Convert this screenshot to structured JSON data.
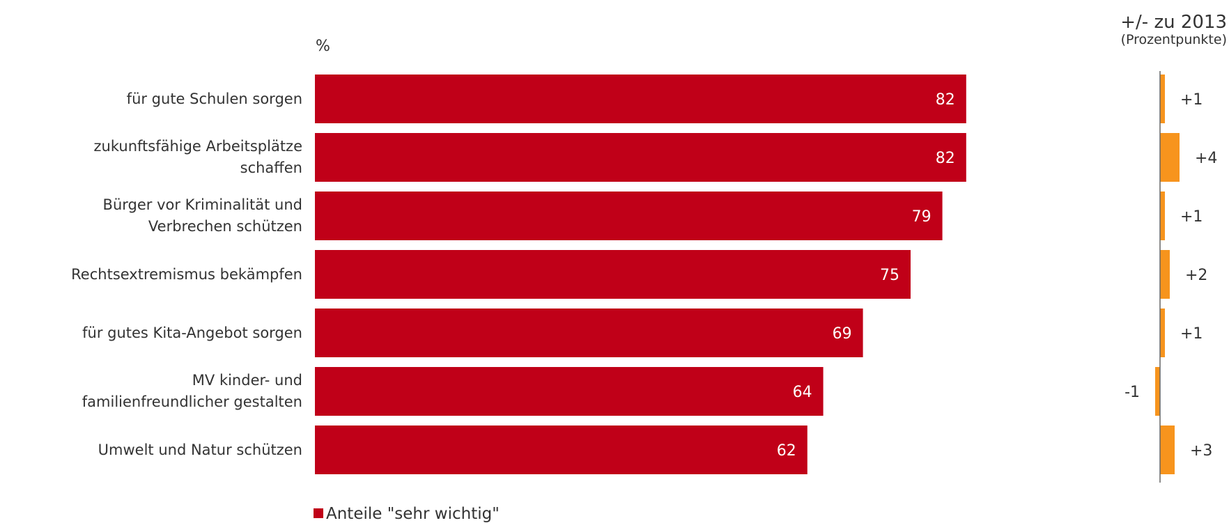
{
  "chart_data": {
    "type": "bar",
    "orientation": "horizontal",
    "unit_label": "%",
    "categories": [
      "für gute Schulen sorgen",
      "zukunftsfähige Arbeitsplätze schaffen",
      "Bürger vor Kriminalität und Verbrechen schützen",
      "Rechtsextremismus bekämpfen",
      "für gutes Kita-Angebot sorgen",
      "MV kinder- und familienfreundlicher gestalten",
      "Umwelt und Natur schützen"
    ],
    "category_lines": [
      [
        "für gute Schulen sorgen"
      ],
      [
        "zukunftsfähige Arbeitsplätze",
        "schaffen"
      ],
      [
        "Bürger vor Kriminalität und",
        "Verbrechen schützen"
      ],
      [
        "Rechtsextremismus bekämpfen"
      ],
      [
        "für gutes Kita-Angebot sorgen"
      ],
      [
        "MV kinder- und",
        "familienfreundlicher gestalten"
      ],
      [
        "Umwelt und Natur schützen"
      ]
    ],
    "series": [
      {
        "name": "Anteile \"sehr wichtig\"",
        "values": [
          82,
          82,
          79,
          75,
          69,
          64,
          62
        ],
        "color": "#c00018"
      },
      {
        "values": [
          1,
          4,
          1,
          2,
          1,
          -1,
          3
        ],
        "color": "#f7941d"
      }
    ],
    "change_labels": [
      "+1",
      "+4",
      "+1",
      "+2",
      "+1",
      "-1",
      "+3"
    ],
    "xlim": [
      0,
      100
    ],
    "grid": false,
    "legend_position": "bottom-left"
  },
  "change_header": {
    "title": "+/- zu 2013",
    "subtitle": "(Prozentpunkte)"
  },
  "legend": {
    "label": "Anteile \"sehr wichtig\""
  }
}
